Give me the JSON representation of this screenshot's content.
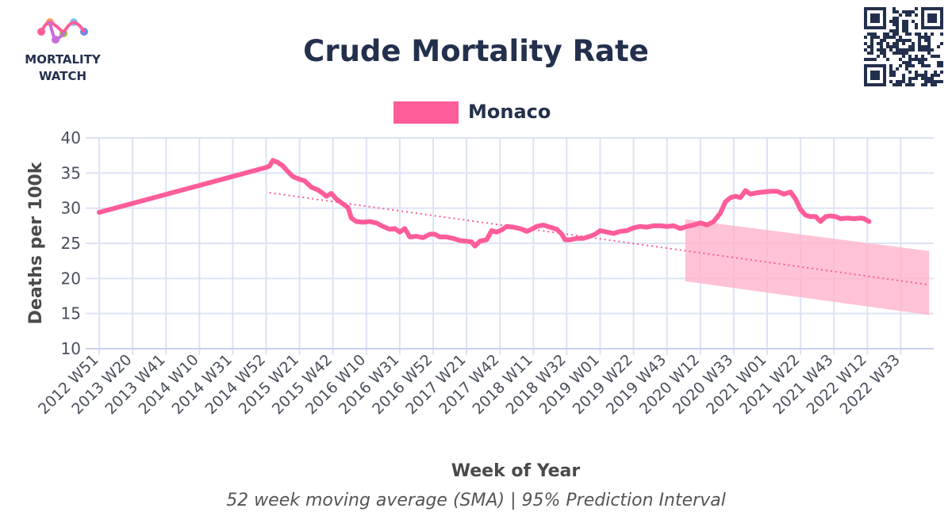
{
  "header": {
    "logo_line1": "MORTALITY",
    "logo_line2": "WATCH"
  },
  "colors": {
    "series": "#ff5c9a",
    "band": "#ffb3cc",
    "grid": "#dde3f5",
    "axis": "#c9d2ee",
    "title": "#23304d"
  },
  "icons": [
    "mortality-watch-logo",
    "qr-code-icon"
  ],
  "chart_data": {
    "type": "line",
    "title": "Crude Mortality Rate",
    "xlabel": "Week of Year",
    "ylabel": "Deaths per 100k",
    "caption": "52 week moving average (SMA) | 95% Prediction Interval",
    "ylim": [
      10,
      40
    ],
    "yticks": [
      10,
      15,
      20,
      25,
      30,
      35,
      40
    ],
    "grid": true,
    "legend_position": "top-center",
    "x_ticks": [
      "2012 W51",
      "2013 W20",
      "2013 W41",
      "2014 W10",
      "2014 W31",
      "2014 W52",
      "2015 W21",
      "2015 W42",
      "2016 W10",
      "2016 W31",
      "2016 W52",
      "2017 W21",
      "2017 W42",
      "2018 W11",
      "2018 W32",
      "2019 W01",
      "2019 W22",
      "2019 W43",
      "2020 W12",
      "2020 W33",
      "2021 W01",
      "2021 W22",
      "2021 W43",
      "2022 W12",
      "2022 W33"
    ],
    "x_index_range": [
      0,
      24.9
    ],
    "series": [
      {
        "name": "Monaco",
        "kind": "line",
        "points": [
          [
            0,
            29.4
          ],
          [
            5,
            35.8
          ],
          [
            5.1,
            36.0
          ],
          [
            5.2,
            36.8
          ],
          [
            5.35,
            36.5
          ],
          [
            5.5,
            36.0
          ],
          [
            5.65,
            35.2
          ],
          [
            5.8,
            34.5
          ],
          [
            6.0,
            34.1
          ],
          [
            6.15,
            33.9
          ],
          [
            6.35,
            33.0
          ],
          [
            6.55,
            32.6
          ],
          [
            6.7,
            32.1
          ],
          [
            6.8,
            31.7
          ],
          [
            6.95,
            32.1
          ],
          [
            7.1,
            31.3
          ],
          [
            7.3,
            30.6
          ],
          [
            7.45,
            30.1
          ],
          [
            7.55,
            28.6
          ],
          [
            7.7,
            28.1
          ],
          [
            7.9,
            28.0
          ],
          [
            8.1,
            28.1
          ],
          [
            8.3,
            27.9
          ],
          [
            8.5,
            27.4
          ],
          [
            8.7,
            27.0
          ],
          [
            8.85,
            27.1
          ],
          [
            9.0,
            26.6
          ],
          [
            9.15,
            27.1
          ],
          [
            9.3,
            25.9
          ],
          [
            9.5,
            26.0
          ],
          [
            9.7,
            25.8
          ],
          [
            9.9,
            26.3
          ],
          [
            10.05,
            26.3
          ],
          [
            10.2,
            25.9
          ],
          [
            10.4,
            25.9
          ],
          [
            10.6,
            25.7
          ],
          [
            10.8,
            25.4
          ],
          [
            11.0,
            25.3
          ],
          [
            11.15,
            25.2
          ],
          [
            11.25,
            24.6
          ],
          [
            11.4,
            25.3
          ],
          [
            11.6,
            25.5
          ],
          [
            11.75,
            26.8
          ],
          [
            11.9,
            26.6
          ],
          [
            12.05,
            26.9
          ],
          [
            12.2,
            27.4
          ],
          [
            12.4,
            27.3
          ],
          [
            12.6,
            27.1
          ],
          [
            12.8,
            26.7
          ],
          [
            12.95,
            27.0
          ],
          [
            13.1,
            27.4
          ],
          [
            13.3,
            27.6
          ],
          [
            13.5,
            27.3
          ],
          [
            13.7,
            27.0
          ],
          [
            13.85,
            26.3
          ],
          [
            13.95,
            25.5
          ],
          [
            14.1,
            25.5
          ],
          [
            14.3,
            25.7
          ],
          [
            14.5,
            25.7
          ],
          [
            14.7,
            26.0
          ],
          [
            14.85,
            26.3
          ],
          [
            15.0,
            26.8
          ],
          [
            15.2,
            26.6
          ],
          [
            15.4,
            26.4
          ],
          [
            15.6,
            26.7
          ],
          [
            15.8,
            26.8
          ],
          [
            16.0,
            27.2
          ],
          [
            16.2,
            27.4
          ],
          [
            16.4,
            27.3
          ],
          [
            16.6,
            27.5
          ],
          [
            16.8,
            27.5
          ],
          [
            17.0,
            27.4
          ],
          [
            17.2,
            27.5
          ],
          [
            17.4,
            27.1
          ],
          [
            17.6,
            27.4
          ],
          [
            17.8,
            27.6
          ],
          [
            18.0,
            27.9
          ],
          [
            18.2,
            27.6
          ],
          [
            18.4,
            28.1
          ],
          [
            18.6,
            29.3
          ],
          [
            18.75,
            30.9
          ],
          [
            18.9,
            31.5
          ],
          [
            19.05,
            31.7
          ],
          [
            19.2,
            31.5
          ],
          [
            19.35,
            32.5
          ],
          [
            19.5,
            32.0
          ],
          [
            19.7,
            32.2
          ],
          [
            19.9,
            32.3
          ],
          [
            20.1,
            32.4
          ],
          [
            20.3,
            32.4
          ],
          [
            20.5,
            32.0
          ],
          [
            20.7,
            32.3
          ],
          [
            20.85,
            31.3
          ],
          [
            21.0,
            29.8
          ],
          [
            21.15,
            29.0
          ],
          [
            21.3,
            28.8
          ],
          [
            21.45,
            28.8
          ],
          [
            21.6,
            28.1
          ],
          [
            21.75,
            28.8
          ],
          [
            21.9,
            28.9
          ],
          [
            22.05,
            28.8
          ],
          [
            22.2,
            28.5
          ],
          [
            22.4,
            28.6
          ],
          [
            22.6,
            28.5
          ],
          [
            22.8,
            28.6
          ],
          [
            22.9,
            28.5
          ],
          [
            23.05,
            28.1
          ]
        ]
      },
      {
        "kind": "trend",
        "points": [
          [
            5.1,
            32.2
          ],
          [
            24.85,
            19.1
          ]
        ]
      },
      {
        "kind": "prediction_interval",
        "upper": [
          [
            17.55,
            28.4
          ],
          [
            24.85,
            23.9
          ]
        ],
        "lower": [
          [
            17.55,
            19.6
          ],
          [
            24.85,
            14.8
          ]
        ]
      }
    ]
  }
}
